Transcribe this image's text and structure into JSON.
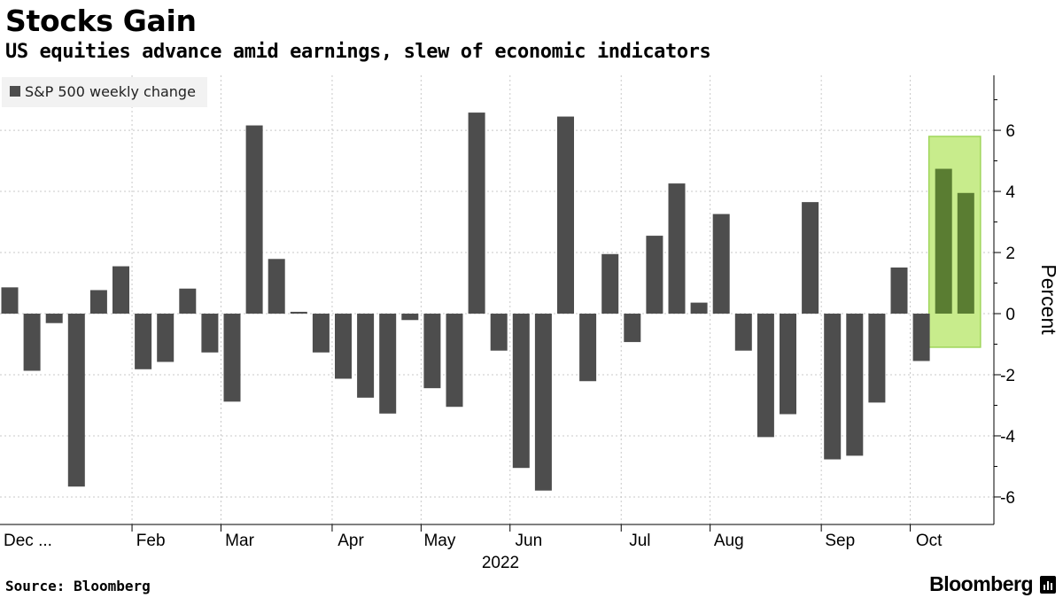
{
  "header": {
    "title": "Stocks Gain",
    "subtitle": "US equities advance amid earnings, slew of economic indicators"
  },
  "footer": {
    "source": "Source: Bloomberg",
    "brand": "Bloomberg",
    "brand_icon": "bloomberg-terminal-icon"
  },
  "colors": {
    "bar": "#4d4d4d",
    "highlight_fill": "#c8ec8c",
    "highlight_bar": "#5a7d32",
    "highlight_border": "#9fd65a",
    "grid": "#c8c8c8",
    "legend_bg": "#f2f2f2"
  },
  "chart_data": {
    "type": "bar",
    "legend": {
      "label": "S&P 500 weekly change",
      "placement": "top-left"
    },
    "ylabel": "Percent",
    "ylim": [
      -6.9,
      7.8
    ],
    "yticks": [
      -6,
      -4,
      -2,
      0,
      2,
      4,
      6
    ],
    "ytick_labels": [
      "-6",
      "-4",
      "-2",
      "0",
      "2",
      "4",
      "6"
    ],
    "grid": true,
    "xtick_labels": [
      "Dec ...",
      "Feb",
      "Mar",
      "Apr",
      "May",
      "Jun",
      "Jul",
      "Aug",
      "Sep",
      "Oct"
    ],
    "xtick_week_index": [
      0,
      6,
      10,
      15,
      19,
      23,
      28,
      32,
      37,
      41
    ],
    "x_year_label": "2022",
    "series": [
      {
        "values": [
          0.86,
          -1.87,
          -0.31,
          -5.66,
          0.77,
          1.55,
          -1.82,
          -1.58,
          0.82,
          -1.27,
          -2.88,
          6.16,
          1.79,
          0.06,
          -1.27,
          -2.13,
          -2.75,
          -3.27,
          -0.21,
          -2.44,
          -3.05,
          6.58,
          -1.21,
          -5.05,
          -5.79,
          6.45,
          -2.21,
          1.95,
          -0.93,
          2.55,
          4.26,
          0.36,
          3.26,
          -1.21,
          -4.04,
          -3.29,
          3.65,
          -4.77,
          -4.65,
          -2.91,
          1.51,
          -1.55,
          4.74,
          3.95
        ]
      }
    ],
    "highlight": {
      "from_week_index": 42,
      "to_week_index": 43,
      "ylim": [
        -1.1,
        5.8
      ]
    }
  }
}
